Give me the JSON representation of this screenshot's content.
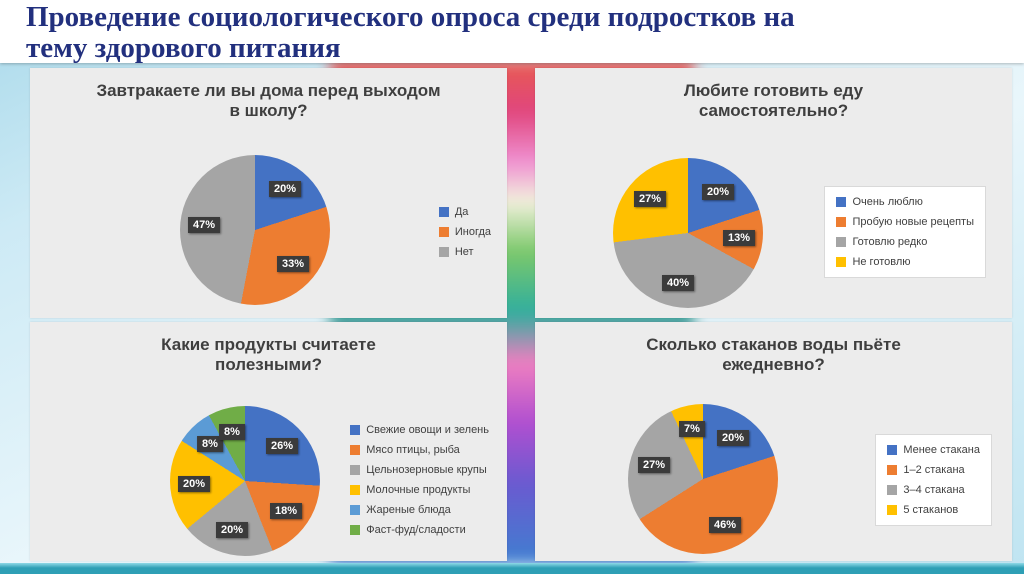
{
  "slide": {
    "title": "Проведение социологического опроса среди подростков на\nтему здорового питания"
  },
  "chart_data": [
    {
      "type": "pie",
      "title": "Завтракаете ли вы дома перед выходом в школу?",
      "labels": [
        "Да",
        "Иногда",
        "Нет"
      ],
      "values": [
        20,
        33,
        47
      ],
      "data_labels": [
        "20%",
        "33%",
        "47%"
      ],
      "colors": [
        "#4472C4",
        "#ED7D31",
        "#A5A5A5"
      ],
      "legend_position": "right",
      "start_angle": 0,
      "direction": "clockwise"
    },
    {
      "type": "pie",
      "title": "Любите готовить еду самостоятельно?",
      "labels": [
        "Очень люблю",
        "Пробую новые рецепты",
        "Готовлю редко",
        "Не готовлю"
      ],
      "values": [
        20,
        13,
        40,
        27
      ],
      "data_labels": [
        "20%",
        "13%",
        "40%",
        "27%"
      ],
      "colors": [
        "#4472C4",
        "#ED7D31",
        "#A5A5A5",
        "#FFC000"
      ],
      "legend_position": "right",
      "start_angle": 0,
      "direction": "clockwise"
    },
    {
      "type": "pie",
      "title": "Какие продукты считаете полезными?",
      "labels": [
        "Свежие овощи и зелень",
        "Мясо птицы, рыба",
        "Цельнозерновые крупы",
        "Молочные продукты",
        "Жареные блюда",
        "Фаст-фуд/сладости"
      ],
      "values": [
        26,
        18,
        20,
        20,
        8,
        8
      ],
      "data_labels": [
        "26%",
        "18%",
        "20%",
        "20%",
        "8%",
        "8%"
      ],
      "colors": [
        "#4472C4",
        "#ED7D31",
        "#A5A5A5",
        "#FFC000",
        "#5B9BD5",
        "#70AD47"
      ],
      "legend_position": "right",
      "start_angle": 0,
      "direction": "clockwise"
    },
    {
      "type": "pie",
      "title": "Сколько стаканов воды пьёте ежедневно?",
      "labels": [
        "Менее стакана",
        "1–2 стакана",
        "3–4 стакана",
        "5 стаканов"
      ],
      "values": [
        20,
        46,
        27,
        7
      ],
      "data_labels": [
        "20%",
        "46%",
        "27%",
        "7%"
      ],
      "colors": [
        "#4472C4",
        "#ED7D31",
        "#A5A5A5",
        "#FFC000"
      ],
      "legend_position": "right",
      "start_angle": 0,
      "direction": "clockwise"
    }
  ],
  "theme": {
    "title_color": "#22307E",
    "panel_color": "#ECECEC",
    "accent_teal": "#2E9FB5",
    "data_label_box": "#3B3B3B"
  }
}
